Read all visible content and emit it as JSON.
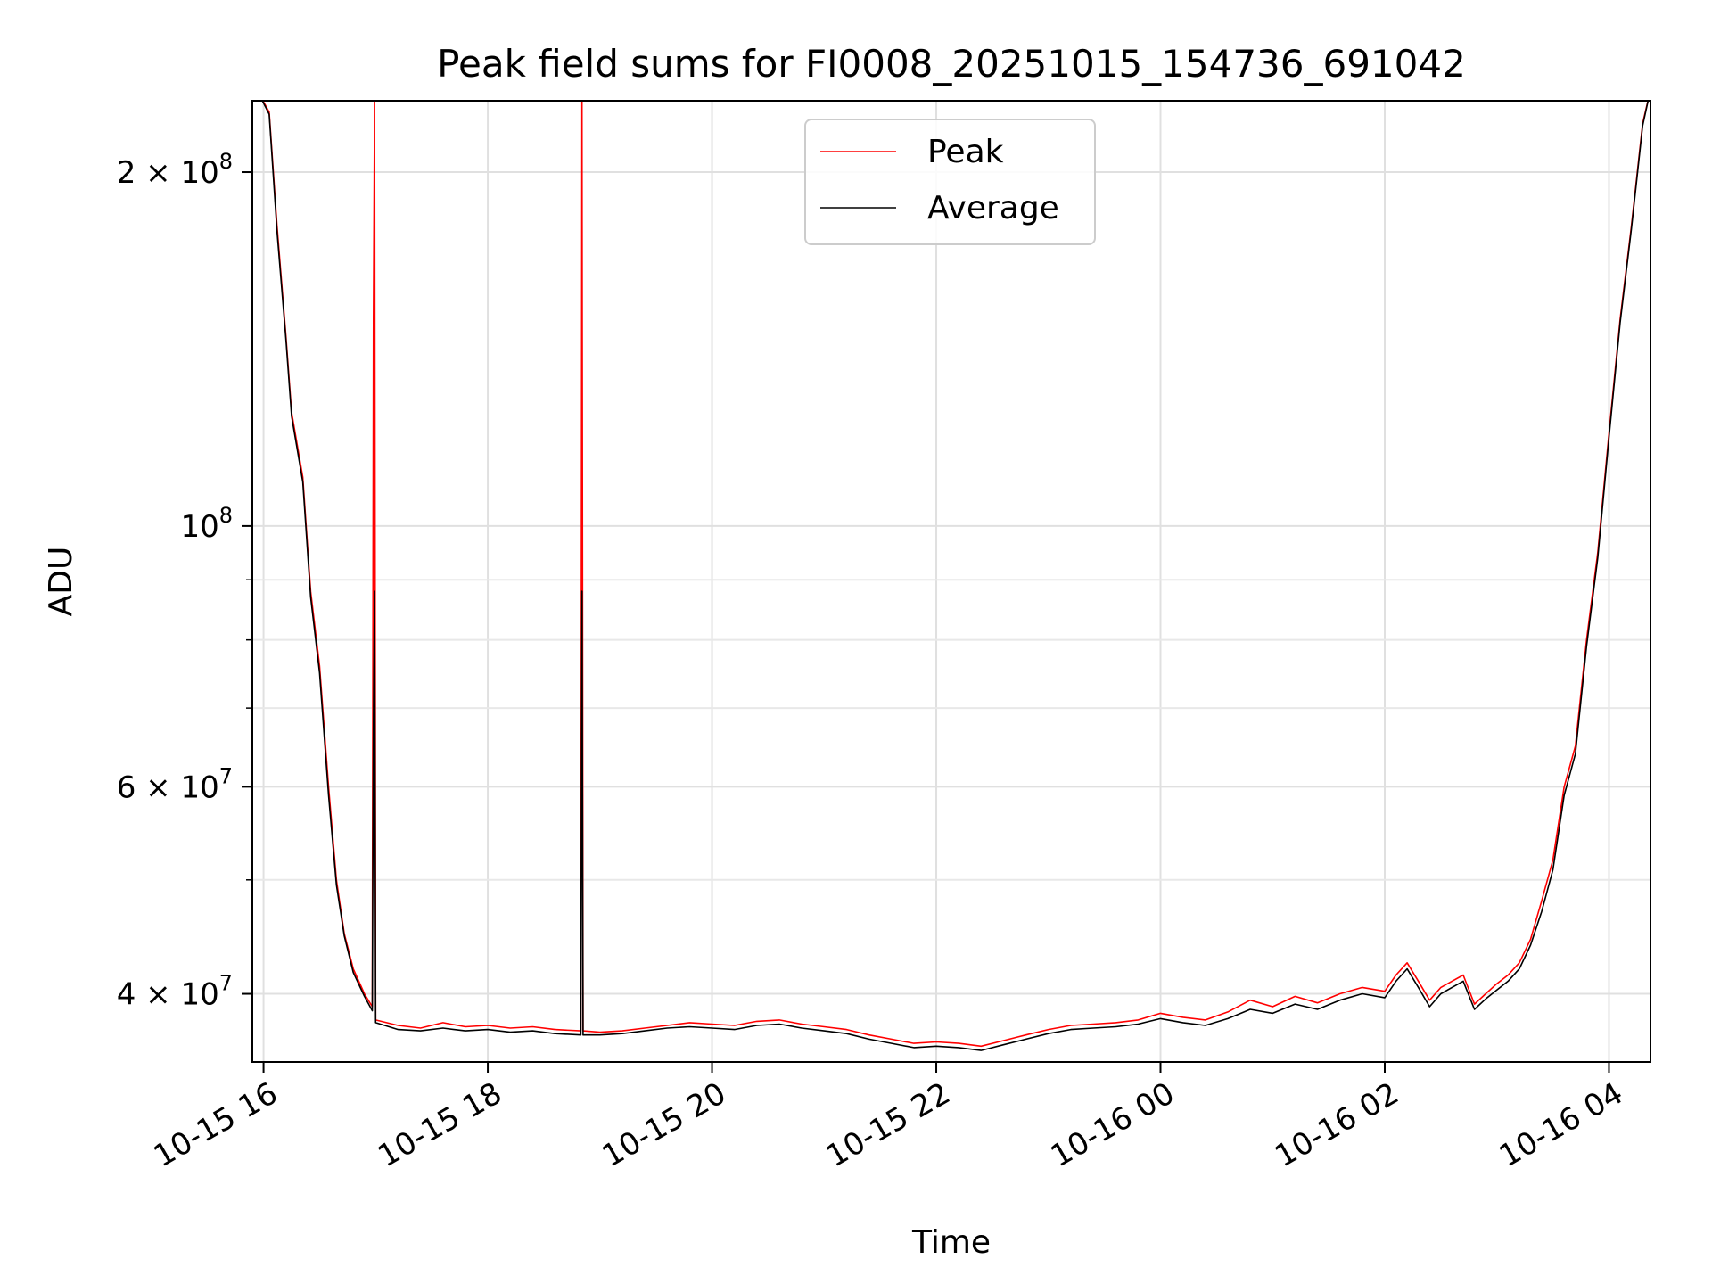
{
  "chart_data": {
    "type": "line",
    "title": "Peak field sums for FI0008_20251015_154736_691042",
    "xlabel": "Time",
    "ylabel": "ADU",
    "yscale": "log",
    "ylim": [
      35000000,
      230000000
    ],
    "xlim_hours": [
      15.9,
      28.37
    ],
    "grid": true,
    "legend_position": "upper-center",
    "x_ticks": [
      {
        "hour": 16,
        "label": "10-15 16"
      },
      {
        "hour": 18,
        "label": "10-15 18"
      },
      {
        "hour": 20,
        "label": "10-15 20"
      },
      {
        "hour": 22,
        "label": "10-15 22"
      },
      {
        "hour": 24,
        "label": "10-16 00"
      },
      {
        "hour": 26,
        "label": "10-16 02"
      },
      {
        "hour": 28,
        "label": "10-16 04"
      }
    ],
    "y_ticks": [
      {
        "value": 40000000,
        "base": "4 × 10",
        "exp": "7"
      },
      {
        "value": 60000000,
        "base": "6 × 10",
        "exp": "7"
      },
      {
        "value": 100000000,
        "base": "10",
        "exp": "8"
      },
      {
        "value": 200000000,
        "base": "2 × 10",
        "exp": "8"
      }
    ],
    "y_minor_ticks": [
      50000000,
      70000000,
      80000000,
      90000000
    ],
    "series": [
      {
        "name": "Peak",
        "color": "#ff0000",
        "points": [
          [
            15.94,
            235000000
          ],
          [
            16.05,
            225000000
          ],
          [
            16.12,
            180000000
          ],
          [
            16.2,
            145000000
          ],
          [
            16.25,
            125000000
          ],
          [
            16.35,
            110000000
          ],
          [
            16.42,
            88000000
          ],
          [
            16.5,
            76000000
          ],
          [
            16.58,
            60000000
          ],
          [
            16.65,
            50000000
          ],
          [
            16.72,
            45000000
          ],
          [
            16.8,
            42000000
          ],
          [
            16.9,
            40000000
          ],
          [
            16.97,
            39000000
          ],
          [
            16.98,
            150000000
          ],
          [
            16.99,
            230000000
          ],
          [
            17.0,
            38000000
          ],
          [
            17.2,
            37600000
          ],
          [
            17.4,
            37400000
          ],
          [
            17.6,
            37800000
          ],
          [
            17.8,
            37500000
          ],
          [
            18.0,
            37600000
          ],
          [
            18.2,
            37400000
          ],
          [
            18.4,
            37500000
          ],
          [
            18.6,
            37300000
          ],
          [
            18.83,
            37200000
          ],
          [
            18.84,
            230000000
          ],
          [
            18.85,
            37200000
          ],
          [
            19.0,
            37100000
          ],
          [
            19.2,
            37200000
          ],
          [
            19.4,
            37400000
          ],
          [
            19.6,
            37600000
          ],
          [
            19.8,
            37800000
          ],
          [
            20.0,
            37700000
          ],
          [
            20.2,
            37600000
          ],
          [
            20.4,
            37900000
          ],
          [
            20.6,
            38000000
          ],
          [
            20.8,
            37700000
          ],
          [
            21.0,
            37500000
          ],
          [
            21.2,
            37300000
          ],
          [
            21.4,
            36900000
          ],
          [
            21.6,
            36600000
          ],
          [
            21.8,
            36300000
          ],
          [
            22.0,
            36400000
          ],
          [
            22.2,
            36300000
          ],
          [
            22.4,
            36100000
          ],
          [
            22.6,
            36500000
          ],
          [
            22.8,
            36900000
          ],
          [
            23.0,
            37300000
          ],
          [
            23.2,
            37600000
          ],
          [
            23.4,
            37700000
          ],
          [
            23.6,
            37800000
          ],
          [
            23.8,
            38000000
          ],
          [
            24.0,
            38500000
          ],
          [
            24.2,
            38200000
          ],
          [
            24.4,
            38000000
          ],
          [
            24.6,
            38600000
          ],
          [
            24.8,
            39500000
          ],
          [
            25.0,
            39000000
          ],
          [
            25.2,
            39800000
          ],
          [
            25.4,
            39300000
          ],
          [
            25.6,
            40000000
          ],
          [
            25.8,
            40500000
          ],
          [
            26.0,
            40200000
          ],
          [
            26.1,
            41500000
          ],
          [
            26.2,
            42500000
          ],
          [
            26.3,
            41000000
          ],
          [
            26.4,
            39500000
          ],
          [
            26.5,
            40500000
          ],
          [
            26.6,
            41000000
          ],
          [
            26.7,
            41500000
          ],
          [
            26.8,
            39200000
          ],
          [
            26.9,
            40000000
          ],
          [
            27.0,
            40800000
          ],
          [
            27.1,
            41500000
          ],
          [
            27.2,
            42500000
          ],
          [
            27.3,
            44500000
          ],
          [
            27.4,
            48000000
          ],
          [
            27.5,
            52000000
          ],
          [
            27.6,
            60000000
          ],
          [
            27.7,
            65000000
          ],
          [
            27.8,
            80000000
          ],
          [
            27.9,
            95000000
          ],
          [
            28.0,
            120000000
          ],
          [
            28.1,
            150000000
          ],
          [
            28.2,
            180000000
          ],
          [
            28.3,
            220000000
          ],
          [
            28.37,
            235000000
          ]
        ]
      },
      {
        "name": "Average",
        "color": "#000000",
        "points": [
          [
            15.94,
            235000000
          ],
          [
            16.05,
            224000000
          ],
          [
            16.12,
            178000000
          ],
          [
            16.2,
            144000000
          ],
          [
            16.25,
            124000000
          ],
          [
            16.35,
            109000000
          ],
          [
            16.42,
            87000000
          ],
          [
            16.5,
            75000000
          ],
          [
            16.58,
            59000000
          ],
          [
            16.65,
            49500000
          ],
          [
            16.72,
            44800000
          ],
          [
            16.8,
            41700000
          ],
          [
            16.9,
            39800000
          ],
          [
            16.97,
            38700000
          ],
          [
            16.98,
            68000000
          ],
          [
            16.99,
            88000000
          ],
          [
            17.0,
            37800000
          ],
          [
            17.2,
            37300000
          ],
          [
            17.4,
            37200000
          ],
          [
            17.6,
            37400000
          ],
          [
            17.8,
            37200000
          ],
          [
            18.0,
            37300000
          ],
          [
            18.2,
            37100000
          ],
          [
            18.4,
            37200000
          ],
          [
            18.6,
            37000000
          ],
          [
            18.83,
            36900000
          ],
          [
            18.84,
            88000000
          ],
          [
            18.85,
            36900000
          ],
          [
            19.0,
            36900000
          ],
          [
            19.2,
            37000000
          ],
          [
            19.4,
            37200000
          ],
          [
            19.6,
            37400000
          ],
          [
            19.8,
            37500000
          ],
          [
            20.0,
            37400000
          ],
          [
            20.2,
            37300000
          ],
          [
            20.4,
            37600000
          ],
          [
            20.6,
            37700000
          ],
          [
            20.8,
            37400000
          ],
          [
            21.0,
            37200000
          ],
          [
            21.2,
            37000000
          ],
          [
            21.4,
            36600000
          ],
          [
            21.6,
            36300000
          ],
          [
            21.8,
            36000000
          ],
          [
            22.0,
            36100000
          ],
          [
            22.2,
            36000000
          ],
          [
            22.4,
            35800000
          ],
          [
            22.6,
            36200000
          ],
          [
            22.8,
            36600000
          ],
          [
            23.0,
            37000000
          ],
          [
            23.2,
            37300000
          ],
          [
            23.4,
            37400000
          ],
          [
            23.6,
            37500000
          ],
          [
            23.8,
            37700000
          ],
          [
            24.0,
            38100000
          ],
          [
            24.2,
            37800000
          ],
          [
            24.4,
            37600000
          ],
          [
            24.6,
            38100000
          ],
          [
            24.8,
            38800000
          ],
          [
            25.0,
            38500000
          ],
          [
            25.2,
            39200000
          ],
          [
            25.4,
            38800000
          ],
          [
            25.6,
            39500000
          ],
          [
            25.8,
            40000000
          ],
          [
            26.0,
            39700000
          ],
          [
            26.1,
            41000000
          ],
          [
            26.2,
            42000000
          ],
          [
            26.3,
            40500000
          ],
          [
            26.4,
            39000000
          ],
          [
            26.5,
            40000000
          ],
          [
            26.6,
            40500000
          ],
          [
            26.7,
            41000000
          ],
          [
            26.8,
            38800000
          ],
          [
            26.9,
            39600000
          ],
          [
            27.0,
            40300000
          ],
          [
            27.1,
            41000000
          ],
          [
            27.2,
            42000000
          ],
          [
            27.3,
            44000000
          ],
          [
            27.4,
            47000000
          ],
          [
            27.5,
            51000000
          ],
          [
            27.6,
            59000000
          ],
          [
            27.7,
            64000000
          ],
          [
            27.8,
            79000000
          ],
          [
            27.9,
            94000000
          ],
          [
            28.0,
            119000000
          ],
          [
            28.1,
            149000000
          ],
          [
            28.2,
            179000000
          ],
          [
            28.3,
            219000000
          ],
          [
            28.37,
            235000000
          ]
        ]
      }
    ]
  }
}
